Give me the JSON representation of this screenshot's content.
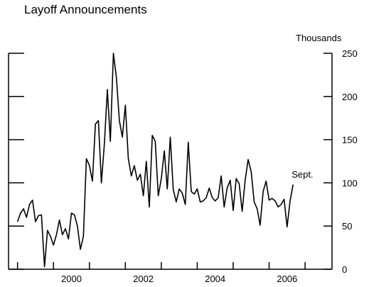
{
  "chart_data": {
    "type": "line",
    "title": "Layoff Announcements",
    "units_label": "Thousands",
    "annotation": "Sept.",
    "x_start": "1999-01",
    "x_end": "2006-09",
    "xlim": [
      "1998-10",
      "2007-10"
    ],
    "x_tick_labels": [
      "2000",
      "2002",
      "2004",
      "2006"
    ],
    "ylim": [
      0,
      250
    ],
    "y_ticks": [
      0,
      50,
      100,
      150,
      200,
      250
    ],
    "grid": false,
    "series": [
      {
        "values": [
          55,
          65,
          70,
          60,
          75,
          80,
          55,
          62,
          63,
          3,
          45,
          38,
          28,
          40,
          57,
          40,
          47,
          35,
          65,
          63,
          50,
          23,
          38,
          128,
          120,
          102,
          168,
          172,
          100,
          145,
          208,
          148,
          250,
          222,
          172,
          153,
          190,
          128,
          108,
          120,
          103,
          110,
          85,
          125,
          72,
          155,
          148,
          85,
          105,
          137,
          93,
          153,
          92,
          78,
          93,
          88,
          75,
          147,
          90,
          87,
          93,
          78,
          79,
          83,
          94,
          83,
          79,
          83,
          108,
          72,
          94,
          103,
          68,
          105,
          99,
          67,
          103,
          127,
          113,
          78,
          70,
          51,
          90,
          102,
          80,
          82,
          79,
          72,
          75,
          81,
          49,
          79,
          98
        ]
      }
    ]
  }
}
